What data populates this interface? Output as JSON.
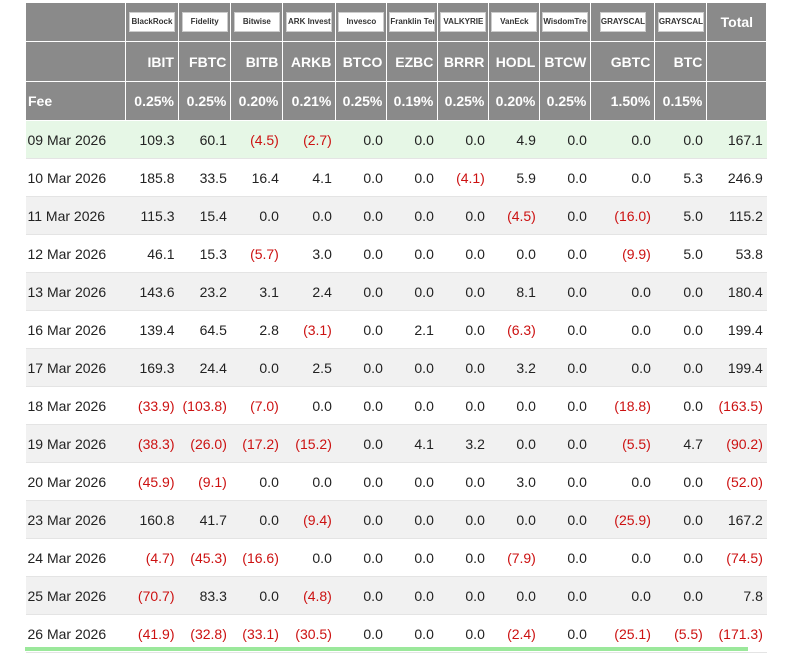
{
  "header": {
    "logos": [
      "BlackRock",
      "Fidelity",
      "Bitwise",
      "ARK Invest",
      "Invesco",
      "Franklin Templeton",
      "VALKYRIE",
      "VanEck",
      "WisdomTree",
      "GRAYSCALE",
      "GRAYSCALE"
    ],
    "total_label": "Total",
    "tickers": [
      "IBIT",
      "FBTC",
      "BITB",
      "ARKB",
      "BTCO",
      "EZBC",
      "BRRR",
      "HODL",
      "BTCW",
      "GBTC",
      "BTC"
    ],
    "fee_label": "Fee",
    "fees": [
      "0.25%",
      "0.25%",
      "0.20%",
      "0.21%",
      "0.25%",
      "0.19%",
      "0.25%",
      "0.20%",
      "0.25%",
      "1.50%",
      "0.15%"
    ]
  },
  "rows": [
    [
      "09 Mar 2026",
      "109.3",
      "60.1",
      "(4.5)",
      "(2.7)",
      "0.0",
      "0.0",
      "0.0",
      "4.9",
      "0.0",
      "0.0",
      "0.0",
      "167.1"
    ],
    [
      "10 Mar 2026",
      "185.8",
      "33.5",
      "16.4",
      "4.1",
      "0.0",
      "0.0",
      "(4.1)",
      "5.9",
      "0.0",
      "0.0",
      "5.3",
      "246.9"
    ],
    [
      "11 Mar 2026",
      "115.3",
      "15.4",
      "0.0",
      "0.0",
      "0.0",
      "0.0",
      "0.0",
      "(4.5)",
      "0.0",
      "(16.0)",
      "5.0",
      "115.2"
    ],
    [
      "12 Mar 2026",
      "46.1",
      "15.3",
      "(5.7)",
      "3.0",
      "0.0",
      "0.0",
      "0.0",
      "0.0",
      "0.0",
      "(9.9)",
      "5.0",
      "53.8"
    ],
    [
      "13 Mar 2026",
      "143.6",
      "23.2",
      "3.1",
      "2.4",
      "0.0",
      "0.0",
      "0.0",
      "8.1",
      "0.0",
      "0.0",
      "0.0",
      "180.4"
    ],
    [
      "16 Mar 2026",
      "139.4",
      "64.5",
      "2.8",
      "(3.1)",
      "0.0",
      "2.1",
      "0.0",
      "(6.3)",
      "0.0",
      "0.0",
      "0.0",
      "199.4"
    ],
    [
      "17 Mar 2026",
      "169.3",
      "24.4",
      "0.0",
      "2.5",
      "0.0",
      "0.0",
      "0.0",
      "3.2",
      "0.0",
      "0.0",
      "0.0",
      "199.4"
    ],
    [
      "18 Mar 2026",
      "(33.9)",
      "(103.8)",
      "(7.0)",
      "0.0",
      "0.0",
      "0.0",
      "0.0",
      "0.0",
      "0.0",
      "(18.8)",
      "0.0",
      "(163.5)"
    ],
    [
      "19 Mar 2026",
      "(38.3)",
      "(26.0)",
      "(17.2)",
      "(15.2)",
      "0.0",
      "4.1",
      "3.2",
      "0.0",
      "0.0",
      "(5.5)",
      "4.7",
      "(90.2)"
    ],
    [
      "20 Mar 2026",
      "(45.9)",
      "(9.1)",
      "0.0",
      "0.0",
      "0.0",
      "0.0",
      "0.0",
      "3.0",
      "0.0",
      "0.0",
      "0.0",
      "(52.0)"
    ],
    [
      "23 Mar 2026",
      "160.8",
      "41.7",
      "0.0",
      "(9.4)",
      "0.0",
      "0.0",
      "0.0",
      "0.0",
      "0.0",
      "(25.9)",
      "0.0",
      "167.2"
    ],
    [
      "24 Mar 2026",
      "(4.7)",
      "(45.3)",
      "(16.6)",
      "0.0",
      "0.0",
      "0.0",
      "0.0",
      "(7.9)",
      "0.0",
      "0.0",
      "0.0",
      "(74.5)"
    ],
    [
      "25 Mar 2026",
      "(70.7)",
      "83.3",
      "0.0",
      "(4.8)",
      "0.0",
      "0.0",
      "0.0",
      "0.0",
      "0.0",
      "0.0",
      "0.0",
      "7.8"
    ],
    [
      "26 Mar 2026",
      "(41.9)",
      "(32.8)",
      "(33.1)",
      "(30.5)",
      "0.0",
      "0.0",
      "0.0",
      "(2.4)",
      "0.0",
      "(25.1)",
      "(5.5)",
      "(171.3)"
    ]
  ]
}
